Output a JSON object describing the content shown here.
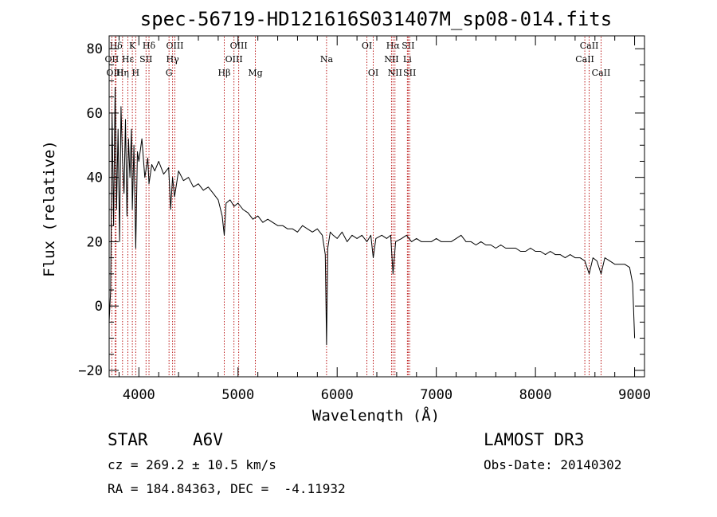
{
  "chart_data": {
    "type": "line",
    "title": "spec-56719-HD121616S031407M_sp08-014.fits",
    "xlabel": "Wavelength (Å)",
    "ylabel": "Flux (relative)",
    "xlim": [
      3700,
      9100
    ],
    "ylim": [
      -22,
      84
    ],
    "xticks": [
      4000,
      5000,
      6000,
      7000,
      8000,
      9000
    ],
    "yticks": [
      -20,
      0,
      20,
      40,
      60,
      80
    ],
    "grid": false,
    "spectral_lines": [
      {
        "label": "Hδ",
        "wavelength": 3770,
        "row": 0
      },
      {
        "label": "K",
        "wavelength": 3934,
        "row": 0
      },
      {
        "label": "Hδ",
        "wavelength": 4102,
        "row": 0
      },
      {
        "label": "OIII",
        "wavelength": 4363,
        "row": 0
      },
      {
        "label": "OIII",
        "wavelength": 5007,
        "row": 0
      },
      {
        "label": "OI",
        "wavelength": 6300,
        "row": 0
      },
      {
        "label": "Hα",
        "wavelength": 6563,
        "row": 0
      },
      {
        "label": "SII",
        "wavelength": 6716,
        "row": 0
      },
      {
        "label": "CaII",
        "wavelength": 8542,
        "row": 0
      },
      {
        "label": "OII",
        "wavelength": 3727,
        "row": 1
      },
      {
        "label": "Hε",
        "wavelength": 3889,
        "row": 1
      },
      {
        "label": "SII",
        "wavelength": 4072,
        "row": 1
      },
      {
        "label": "Hγ",
        "wavelength": 4340,
        "row": 1
      },
      {
        "label": "OIII",
        "wavelength": 4959,
        "row": 1
      },
      {
        "label": "Na",
        "wavelength": 5893,
        "row": 1
      },
      {
        "label": "NII",
        "wavelength": 6548,
        "row": 1
      },
      {
        "label": "Li",
        "wavelength": 6708,
        "row": 1
      },
      {
        "label": "CaII",
        "wavelength": 8498,
        "row": 1
      },
      {
        "label": "OIII",
        "wavelength": 3760,
        "row": 2
      },
      {
        "label": "Hη",
        "wavelength": 3835,
        "row": 2
      },
      {
        "label": "H",
        "wavelength": 3968,
        "row": 2
      },
      {
        "label": "G",
        "wavelength": 4304,
        "row": 2
      },
      {
        "label": "Hβ",
        "wavelength": 4861,
        "row": 2
      },
      {
        "label": "Mg",
        "wavelength": 5175,
        "row": 2
      },
      {
        "label": "OI",
        "wavelength": 6364,
        "row": 2
      },
      {
        "label": "NII",
        "wavelength": 6583,
        "row": 2
      },
      {
        "label": "SII",
        "wavelength": 6731,
        "row": 2
      },
      {
        "label": "CaII",
        "wavelength": 8662,
        "row": 2
      }
    ],
    "series": [
      {
        "x": [
          3700,
          3715,
          3730,
          3745,
          3760,
          3775,
          3790,
          3805,
          3820,
          3835,
          3850,
          3865,
          3880,
          3895,
          3910,
          3925,
          3934,
          3950,
          3968,
          3985,
          4000,
          4030,
          4060,
          4090,
          4102,
          4130,
          4160,
          4200,
          4250,
          4300,
          4320,
          4340,
          4360,
          4400,
          4450,
          4500,
          4550,
          4600,
          4650,
          4700,
          4750,
          4800,
          4840,
          4861,
          4880,
          4920,
          4960,
          5000,
          5050,
          5100,
          5150,
          5200,
          5250,
          5300,
          5350,
          5400,
          5450,
          5500,
          5550,
          5600,
          5650,
          5700,
          5750,
          5800,
          5850,
          5880,
          5893,
          5905,
          5930,
          5960,
          6000,
          6050,
          6100,
          6150,
          6200,
          6250,
          6300,
          6340,
          6364,
          6390,
          6450,
          6500,
          6540,
          6563,
          6590,
          6650,
          6700,
          6750,
          6800,
          6850,
          6900,
          6950,
          7000,
          7050,
          7100,
          7150,
          7200,
          7250,
          7300,
          7350,
          7400,
          7450,
          7500,
          7550,
          7600,
          7650,
          7700,
          7750,
          7800,
          7850,
          7900,
          7950,
          8000,
          8050,
          8100,
          8150,
          8200,
          8250,
          8300,
          8350,
          8400,
          8450,
          8498,
          8542,
          8580,
          8620,
          8662,
          8700,
          8750,
          8800,
          8850,
          8900,
          8950,
          8980,
          9000
        ],
        "y": [
          -5,
          5,
          60,
          25,
          68,
          30,
          55,
          20,
          62,
          45,
          35,
          58,
          28,
          52,
          40,
          55,
          30,
          50,
          18,
          48,
          45,
          52,
          40,
          46,
          38,
          44,
          42,
          45,
          41,
          43,
          30,
          40,
          34,
          42,
          39,
          40,
          37,
          38,
          36,
          37,
          35,
          33,
          28,
          22,
          32,
          33,
          31,
          32,
          30,
          29,
          27,
          28,
          26,
          27,
          26,
          25,
          25,
          24,
          24,
          23,
          25,
          24,
          23,
          24,
          22,
          16,
          -12,
          18,
          23,
          22,
          21,
          23,
          20,
          22,
          21,
          22,
          20,
          22,
          15,
          21,
          22,
          21,
          22,
          10,
          20,
          21,
          22,
          20,
          21,
          20,
          20,
          20,
          21,
          20,
          20,
          20,
          21,
          22,
          20,
          20,
          19,
          20,
          19,
          19,
          18,
          19,
          18,
          18,
          18,
          17,
          17,
          18,
          17,
          17,
          16,
          17,
          16,
          16,
          15,
          16,
          15,
          15,
          14,
          10,
          15,
          14,
          10,
          15,
          14,
          13,
          13,
          13,
          12,
          7,
          -10
        ]
      }
    ]
  },
  "info": {
    "object_type": "STAR",
    "spectral_class": "A6V",
    "survey": "LAMOST DR3",
    "redshift": "cz = 269.2 ± 10.5 km/s",
    "obs_date": "Obs-Date: 20140302",
    "coordinates": "RA = 184.84363, DEC =  -4.11932"
  },
  "colors": {
    "spectrum": "#000000",
    "line_markers": "#b40000"
  }
}
